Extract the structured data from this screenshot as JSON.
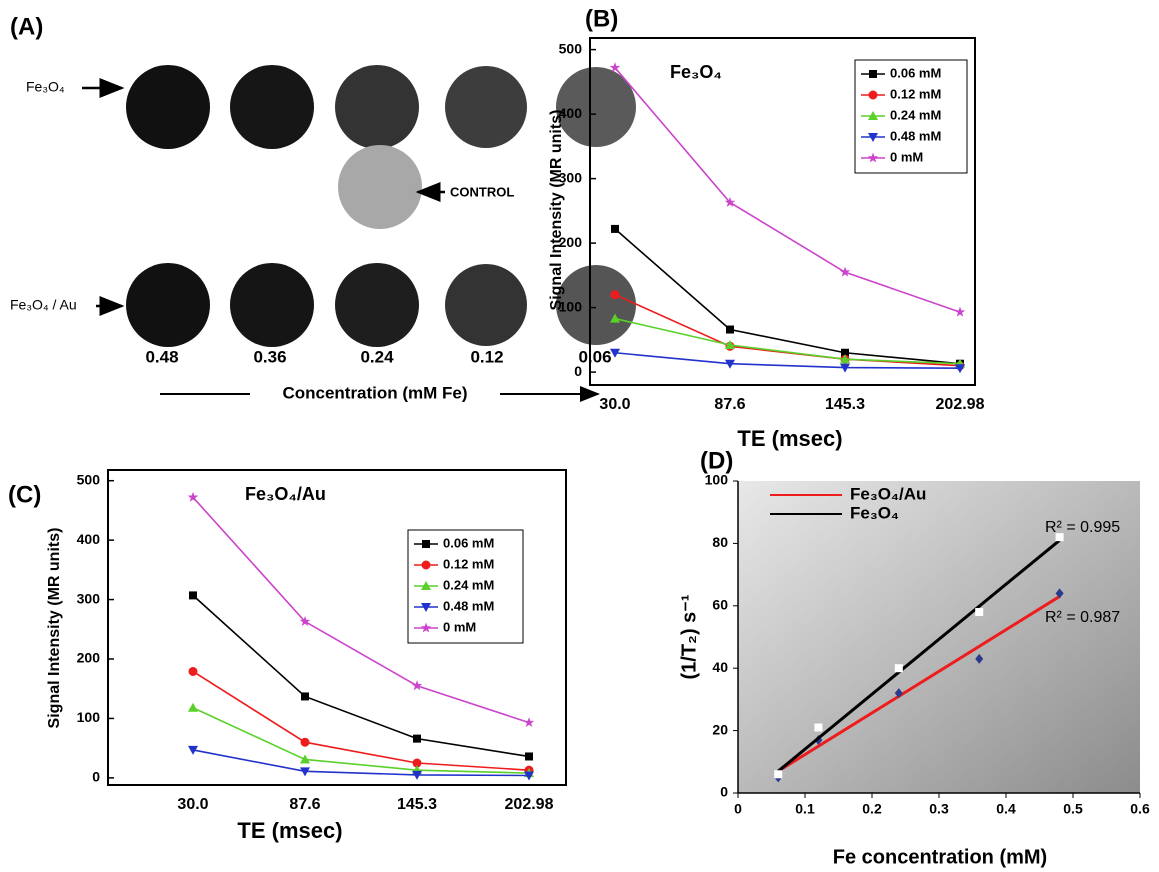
{
  "panel_a": {
    "label": "(A)",
    "rows": [
      "Fe₃O₄",
      "Fe₃O₄ / Au"
    ],
    "control": "CONTROL",
    "concentrations": [
      "0.48",
      "0.36",
      "0.24",
      "0.12",
      "0.06"
    ],
    "axis_label": "Concentration (mM Fe)"
  },
  "chart_data": [
    {
      "type": "line",
      "panel_label": "(B)",
      "title": "Fe₃O₄",
      "x_label": "TE (msec)",
      "y_label": "Signal Intensity (MR units)",
      "categories": [
        "30.0",
        "87.6",
        "145.3",
        "202.98"
      ],
      "ylim": [
        -20,
        518
      ],
      "yticks": [
        0,
        100,
        200,
        300,
        400,
        500
      ],
      "legend": "upper right",
      "series": [
        {
          "name": "0.06 mM",
          "color": "#000000",
          "marker": "square",
          "values": [
            222,
            66,
            30,
            13
          ]
        },
        {
          "name": "0.12 mM",
          "color": "#ee1c1c",
          "marker": "circle",
          "values": [
            120,
            40,
            20,
            10
          ]
        },
        {
          "name": "0.24 mM",
          "color": "#5ad12a",
          "marker": "triangle",
          "values": [
            83,
            42,
            20,
            13
          ]
        },
        {
          "name": "0.48 mM",
          "color": "#2233cc",
          "marker": "triangle-down",
          "values": [
            30,
            13,
            7,
            6
          ]
        },
        {
          "name": "0 mM",
          "color": "#cc44cc",
          "marker": "star",
          "values": [
            472,
            263,
            155,
            93
          ]
        }
      ]
    },
    {
      "type": "line",
      "panel_label": "(C)",
      "title": "Fe₃O₄/Au",
      "x_label": "TE (msec)",
      "y_label": "Signal Intensity (MR units)",
      "categories": [
        "30.0",
        "87.6",
        "145.3",
        "202.98"
      ],
      "ylim": [
        -12,
        518
      ],
      "yticks": [
        0,
        100,
        200,
        300,
        400,
        500
      ],
      "legend": "upper right",
      "series": [
        {
          "name": "0.06 mM",
          "color": "#000000",
          "marker": "square",
          "values": [
            307,
            137,
            66,
            36
          ]
        },
        {
          "name": "0.12 mM",
          "color": "#ee1c1c",
          "marker": "circle",
          "values": [
            179,
            60,
            25,
            13
          ]
        },
        {
          "name": "0.24 mM",
          "color": "#5ad12a",
          "marker": "triangle",
          "values": [
            118,
            31,
            13,
            8
          ]
        },
        {
          "name": "0.48 mM",
          "color": "#2233cc",
          "marker": "triangle-down",
          "values": [
            47,
            11,
            5,
            4
          ]
        },
        {
          "name": "0 mM",
          "color": "#cc44cc",
          "marker": "star",
          "values": [
            472,
            263,
            155,
            93
          ]
        }
      ]
    },
    {
      "type": "scatter",
      "panel_label": "(D)",
      "x_label": "Fe concentration (mM)",
      "y_label": "(1/T₂) s⁻¹",
      "xlim": [
        0,
        0.6
      ],
      "xticks": [
        0,
        0.1,
        0.2,
        0.3,
        0.4,
        0.5,
        0.6
      ],
      "ylim": [
        0,
        100
      ],
      "yticks": [
        0,
        20,
        40,
        60,
        80,
        100
      ],
      "legend": "upper left",
      "annotations": [
        "R² = 0.995",
        "R² = 0.987"
      ],
      "series": [
        {
          "name": "Fe₃O₄/Au",
          "color": "#ee1c1c",
          "marker": "diamond",
          "marker_color": "#2b3a8c",
          "x": [
            0.06,
            0.12,
            0.24,
            0.36,
            0.48
          ],
          "values": [
            5,
            17,
            32,
            43,
            64
          ],
          "fit": {
            "x": [
              0.06,
              0.48
            ],
            "values": [
              7,
              63
            ]
          }
        },
        {
          "name": "Fe₃O₄",
          "color": "#000000",
          "marker": "square",
          "marker_color": "#ffffff",
          "x": [
            0.06,
            0.12,
            0.24,
            0.36,
            0.48
          ],
          "values": [
            6,
            21,
            40,
            58,
            82
          ],
          "fit": {
            "x": [
              0.06,
              0.48
            ],
            "values": [
              7,
              81
            ]
          }
        }
      ]
    }
  ]
}
